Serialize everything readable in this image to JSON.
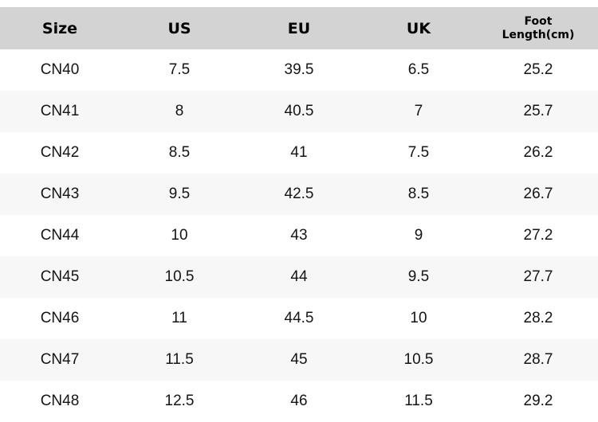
{
  "table": {
    "headers": [
      "Size",
      "US",
      "EU",
      "UK",
      "Foot Length(cm)"
    ],
    "rows": [
      [
        "CN40",
        "7.5",
        "39.5",
        "6.5",
        "25.2"
      ],
      [
        "CN41",
        "8",
        "40.5",
        "7",
        "25.7"
      ],
      [
        "CN42",
        "8.5",
        "41",
        "7.5",
        "26.2"
      ],
      [
        "CN43",
        "9.5",
        "42.5",
        "8.5",
        "26.7"
      ],
      [
        "CN44",
        "10",
        "43",
        "9",
        "27.2"
      ],
      [
        "CN45",
        "10.5",
        "44",
        "9.5",
        "27.7"
      ],
      [
        "CN46",
        "11",
        "44.5",
        "10",
        "28.2"
      ],
      [
        "CN47",
        "11.5",
        "45",
        "10.5",
        "28.7"
      ],
      [
        "CN48",
        "12.5",
        "46",
        "11.5",
        "29.2"
      ]
    ]
  },
  "colors": {
    "page_bg": "#ffffff",
    "header_bg": "#d3d3d3",
    "header_text": "#000000",
    "row_bg": "#ffffff",
    "row_alt_bg": "#f7f7f7",
    "body_text": "#141414"
  },
  "chart_data": {
    "type": "table",
    "title": "",
    "columns": [
      "Size",
      "US",
      "EU",
      "UK",
      "Foot Length(cm)"
    ],
    "rows": [
      [
        "CN40",
        7.5,
        39.5,
        6.5,
        25.2
      ],
      [
        "CN41",
        8,
        40.5,
        7,
        25.7
      ],
      [
        "CN42",
        8.5,
        41,
        7.5,
        26.2
      ],
      [
        "CN43",
        9.5,
        42.5,
        8.5,
        26.7
      ],
      [
        "CN44",
        10,
        43,
        9,
        27.2
      ],
      [
        "CN45",
        10.5,
        44,
        9.5,
        27.7
      ],
      [
        "CN46",
        11,
        44.5,
        10,
        28.2
      ],
      [
        "CN47",
        11.5,
        45,
        10.5,
        28.7
      ],
      [
        "CN48",
        12.5,
        46,
        11.5,
        29.2
      ]
    ],
    "layout_hints": {
      "header_background": "#d3d3d3",
      "zebra_striping": true,
      "alignment": "center",
      "grid": false
    }
  }
}
